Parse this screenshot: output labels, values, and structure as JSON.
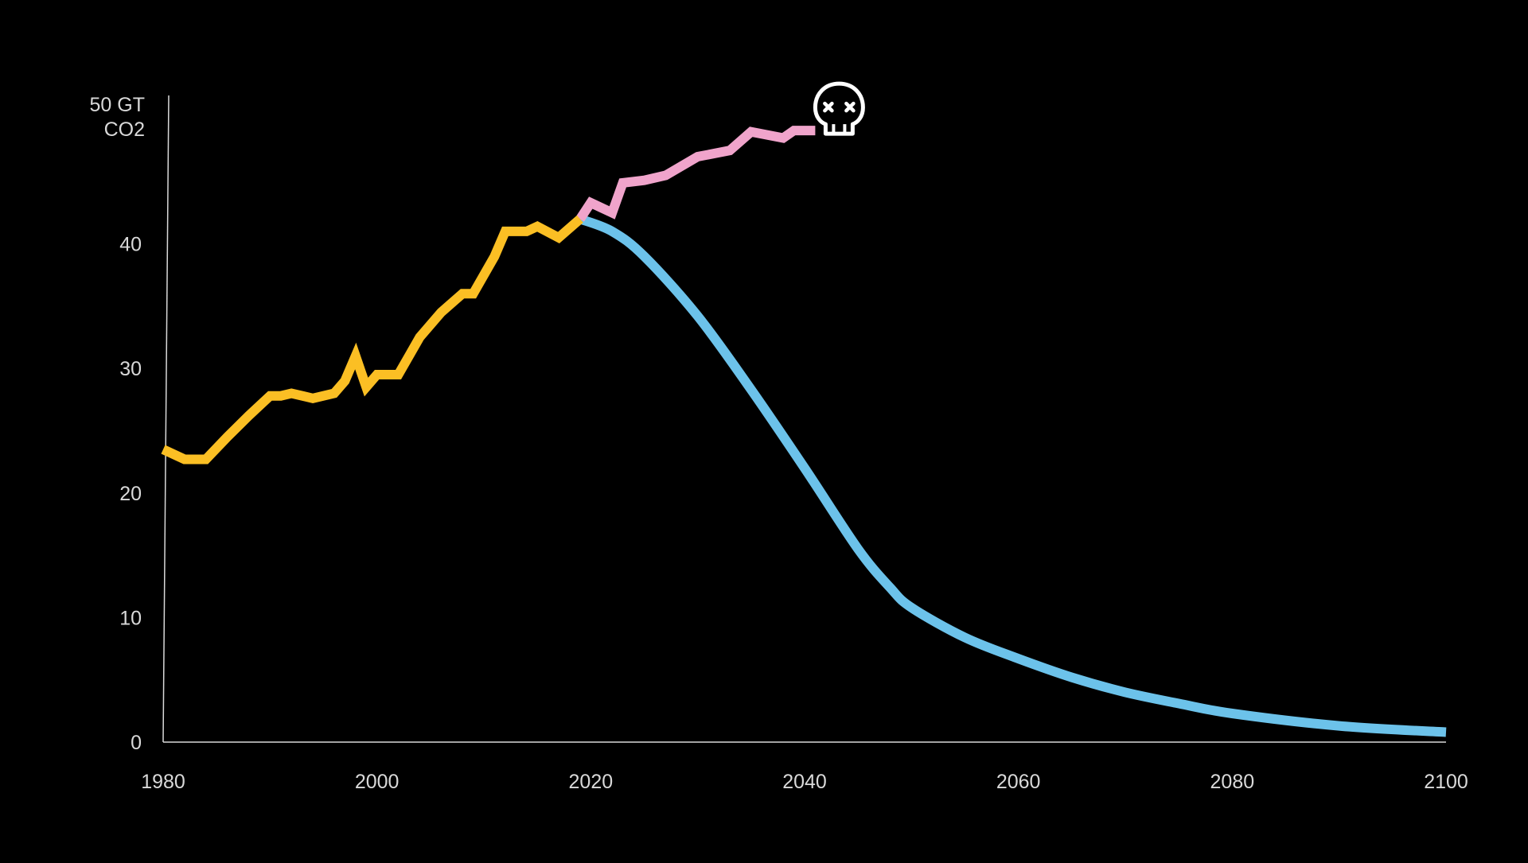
{
  "chart_data": {
    "type": "line",
    "title": "",
    "xlabel": "",
    "ylabel": "",
    "y_axis_label_lines": [
      "50 GT",
      "CO2"
    ],
    "xlim": [
      1980,
      2100
    ],
    "ylim": [
      0,
      50
    ],
    "x_ticks": [
      1980,
      2000,
      2020,
      2040,
      2060,
      2080,
      2100
    ],
    "y_ticks": [
      0,
      10,
      20,
      30,
      40
    ],
    "grid": false,
    "legend": "none",
    "background": "#000000",
    "axis_color": "#d9d9d9",
    "series": [
      {
        "color": "#fbbf24",
        "x": [
          1980,
          1982,
          1984,
          1986,
          1988,
          1990,
          1991,
          1992,
          1994,
          1996,
          1997,
          1998,
          1999,
          2000,
          2002,
          2004,
          2006,
          2008,
          2009,
          2011,
          2012,
          2014,
          2015,
          2017,
          2019
        ],
        "y": [
          23.5,
          22.7,
          22.7,
          24.5,
          26.2,
          27.8,
          27.8,
          28.0,
          27.6,
          28.0,
          29.0,
          31.0,
          28.5,
          29.5,
          29.5,
          32.5,
          34.5,
          36.0,
          36.0,
          39.0,
          41.0,
          41.0,
          41.4,
          40.5,
          42.0
        ]
      },
      {
        "color": "#f0a4cb",
        "x": [
          2019,
          2020,
          2022,
          2023,
          2025,
          2027,
          2030,
          2033,
          2035,
          2038,
          2039,
          2041
        ],
        "y": [
          42.0,
          43.3,
          42.5,
          44.9,
          45.1,
          45.5,
          47.0,
          47.5,
          49.0,
          48.5,
          49.1,
          49.1
        ],
        "end_marker": "skull-icon"
      },
      {
        "color": "#6cc2ea",
        "x": [
          2019,
          2022,
          2025,
          2030,
          2035,
          2040,
          2045,
          2048,
          2050,
          2055,
          2060,
          2065,
          2070,
          2075,
          2080,
          2090,
          2100
        ],
        "y": [
          42.0,
          41.0,
          39.0,
          34.2,
          28.3,
          22.0,
          15.5,
          12.4,
          10.8,
          8.4,
          6.7,
          5.2,
          4.0,
          3.1,
          2.3,
          1.3,
          0.8
        ]
      }
    ]
  }
}
